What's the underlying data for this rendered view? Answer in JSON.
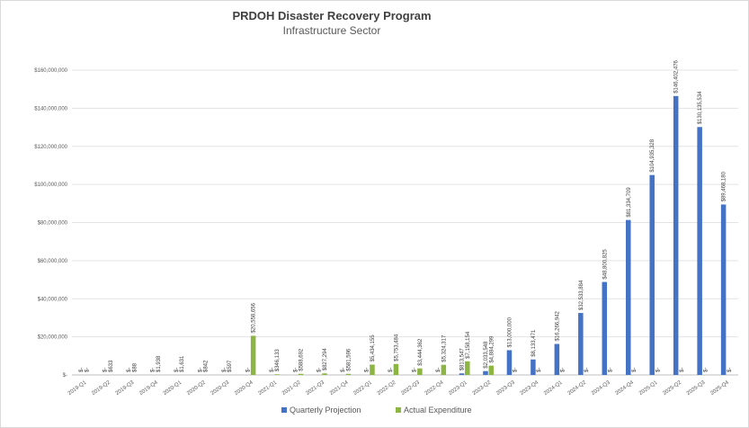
{
  "chart_data": {
    "type": "bar",
    "title": "PRDOH Disaster Recovery Program",
    "subtitle": "Infrastructure Sector",
    "xlabel": "",
    "ylabel": "",
    "ylim": [
      0,
      170000000
    ],
    "y_ticks": [
      {
        "value": 0,
        "label": "$-"
      },
      {
        "value": 20000000,
        "label": "$20,000,000"
      },
      {
        "value": 40000000,
        "label": "$40,000,000"
      },
      {
        "value": 60000000,
        "label": "$60,000,000"
      },
      {
        "value": 80000000,
        "label": "$80,000,000"
      },
      {
        "value": 100000000,
        "label": "$100,000,000"
      },
      {
        "value": 120000000,
        "label": "$120,000,000"
      },
      {
        "value": 140000000,
        "label": "$140,000,000"
      },
      {
        "value": 160000000,
        "label": "$160,000,000"
      }
    ],
    "grid": true,
    "legend_position": "bottom",
    "categories": [
      "2019-Q1",
      "2019-Q2",
      "2019-Q3",
      "2019-Q4",
      "2020-Q1",
      "2020-Q2",
      "2020-Q3",
      "2020-Q4",
      "2021-Q1",
      "2021-Q2",
      "2021-Q3",
      "2021-Q4",
      "2022-Q1",
      "2022-Q2",
      "2022-Q3",
      "2022-Q4",
      "2023-Q1",
      "2023-Q2",
      "2023-Q3",
      "2023-Q4",
      "2024-Q1",
      "2024-Q2",
      "2024-Q3",
      "2024-Q4",
      "2025-Q1",
      "2025-Q2",
      "2025-Q3",
      "2025-Q4"
    ],
    "series": [
      {
        "name": "Quarterly Projection",
        "color": "#4472c4",
        "values": [
          0,
          0,
          0,
          0,
          0,
          0,
          0,
          0,
          0,
          0,
          0,
          0,
          0,
          0,
          0,
          0,
          813547,
          2033548,
          13000000,
          8133471,
          16266942,
          32533884,
          48800825,
          81334709,
          104935328,
          146402476,
          130135534,
          89468180
        ],
        "labels": [
          "$-",
          "$-",
          "$-",
          "$-",
          "$-",
          "$-",
          "$-",
          "$-",
          "$-",
          "$-",
          "$-",
          "$-",
          "$-",
          "$-",
          "$-",
          "$-",
          "$813,547",
          "$2,033,548",
          "$13,000,000",
          "$8,133,471",
          "$16,266,942",
          "$32,533,884",
          "$48,800,825",
          "$81,334,709",
          "$104,935,328",
          "$146,402,476",
          "$130,135,534",
          "$89,468,180"
        ]
      },
      {
        "name": "Actual Expenditure",
        "color": "#8db543",
        "values": [
          0,
          633,
          88,
          1938,
          1631,
          842,
          597,
          20558656,
          346133,
          588692,
          827294,
          581596,
          5434155,
          5753484,
          3444362,
          5324317,
          7158154,
          4884299,
          0,
          0,
          0,
          0,
          0,
          0,
          0,
          0,
          0,
          0
        ],
        "labels": [
          "$-",
          "$633",
          "$88",
          "$1,938",
          "$1,631",
          "$842",
          "$597",
          "$20,558,656",
          "$346,133",
          "$588,692",
          "$827,294",
          "$581,596",
          "$5,434,155",
          "$5,753,484",
          "$3,444,362",
          "$5,324,317",
          "$7,158,154",
          "$4,884,299",
          "$-",
          "$-",
          "$-",
          "$-",
          "$-",
          "$-",
          "$-",
          "$-",
          "$-",
          "$-"
        ]
      }
    ]
  }
}
